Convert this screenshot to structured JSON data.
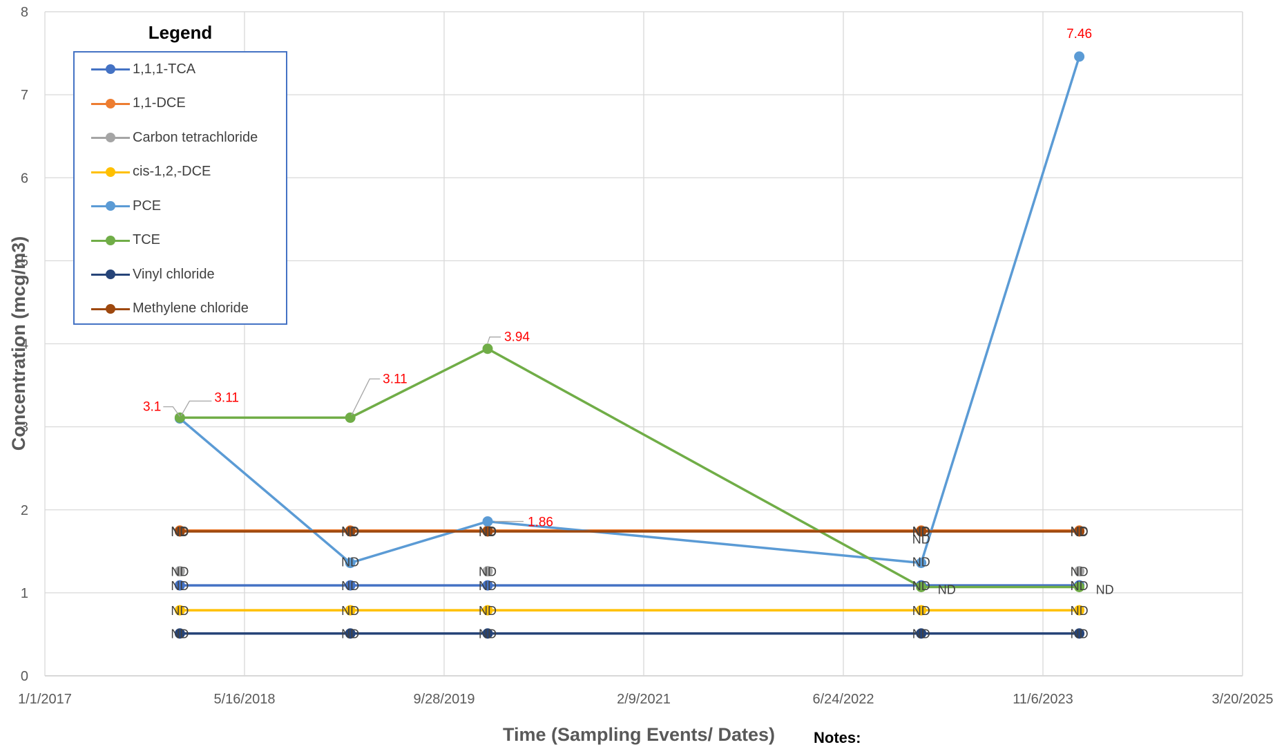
{
  "chart_data": {
    "type": "line",
    "xlabel": "Time (Sampling Events/ Dates)",
    "ylabel": "Concentration (mcg/m3)",
    "ylim": [
      0,
      8
    ],
    "yticks": [
      0,
      1,
      2,
      3,
      4,
      5,
      6,
      7,
      8
    ],
    "xlim": [
      "2017-01-01",
      "2025-03-20"
    ],
    "xticks": [
      "2017-01-01",
      "2018-05-16",
      "2019-09-28",
      "2021-02-09",
      "2022-06-24",
      "2023-11-06",
      "2025-03-20"
    ],
    "xtick_labels": [
      "1/1/2017",
      "5/16/2018",
      "9/28/2019",
      "2/9/2021",
      "6/24/2022",
      "11/6/2023",
      "3/20/2025"
    ],
    "grid": true,
    "x": [
      "2017-12-05",
      "2019-02-05",
      "2020-01-15",
      "2023-01-05",
      "2024-02-05"
    ],
    "legend": {
      "title": "Legend",
      "placement": "top-left"
    },
    "series": [
      {
        "name": "1,1,1-TCA",
        "color": "#4472c4",
        "values": [
          1.09,
          1.09,
          1.09,
          1.09,
          1.09
        ],
        "point_labels": [
          "ND",
          "ND",
          "ND",
          "ND",
          "ND"
        ]
      },
      {
        "name": "1,1-DCE",
        "color": "#ed7d31",
        "values": [
          1.75,
          1.75,
          1.75,
          1.75,
          1.75
        ],
        "point_labels": [
          "ND",
          "ND",
          "ND",
          "ND",
          "ND"
        ]
      },
      {
        "name": "Carbon tetrachloride",
        "color": "#a5a5a5",
        "values": [
          1.26,
          null,
          1.26,
          null,
          1.26
        ],
        "point_labels": [
          "ND",
          "",
          "ND",
          "ND",
          "ND"
        ]
      },
      {
        "name": "cis-1,2,-DCE",
        "color": "#ffc000",
        "values": [
          0.79,
          0.79,
          0.79,
          0.79,
          0.79
        ],
        "point_labels": [
          "ND",
          "ND",
          "ND",
          "ND",
          "ND"
        ]
      },
      {
        "name": "PCE",
        "color": "#5b9bd5",
        "values": [
          3.1,
          1.36,
          1.86,
          1.36,
          7.46
        ],
        "point_labels": [
          "3.1",
          "ND",
          "1.86",
          "ND",
          "7.46"
        ]
      },
      {
        "name": "TCE",
        "color": "#70ad47",
        "values": [
          3.11,
          3.11,
          3.94,
          1.07,
          1.07
        ],
        "point_labels": [
          "3.11",
          "3.11",
          "3.94",
          "ND",
          "ND"
        ]
      },
      {
        "name": "Vinyl chloride",
        "color": "#264478",
        "values": [
          0.51,
          0.51,
          0.51,
          0.51,
          0.51
        ],
        "point_labels": [
          "ND",
          "ND",
          "ND",
          "ND",
          "ND"
        ]
      },
      {
        "name": "Methylene chloride",
        "color": "#9e480e",
        "values": [
          1.74,
          1.74,
          1.74,
          1.74,
          1.74
        ],
        "point_labels": [
          "ND",
          "ND",
          "ND",
          "ND",
          "ND"
        ]
      }
    ]
  },
  "notes_label": "Notes:"
}
